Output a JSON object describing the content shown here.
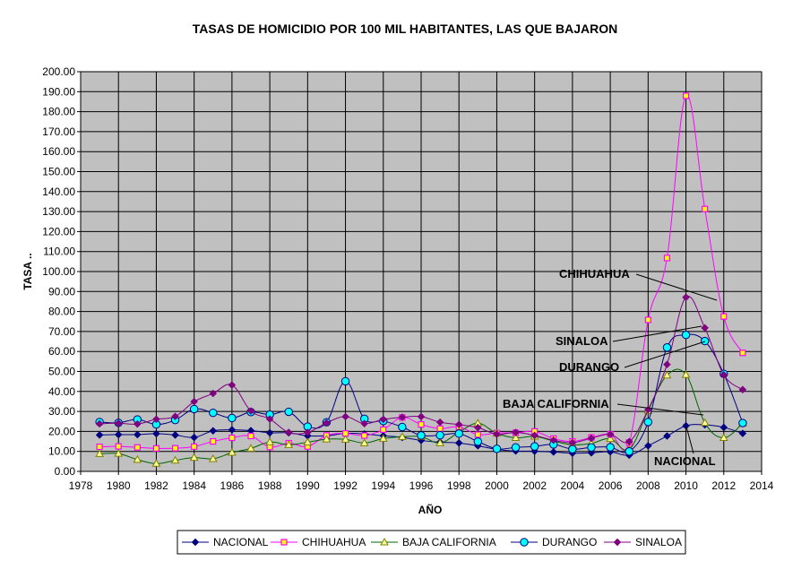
{
  "chart_data": {
    "type": "line",
    "title": "TASAS DE HOMICIDIO POR 100 MIL HABITANTES, LAS QUE BAJARON",
    "xlabel": "AÑO",
    "ylabel": "TASA  ..",
    "xlim": [
      1978,
      2014
    ],
    "ylim": [
      0,
      200
    ],
    "x_ticks": [
      "1978",
      "1980",
      "1982",
      "1984",
      "1986",
      "1988",
      "1990",
      "1992",
      "1994",
      "1996",
      "1998",
      "2000",
      "2002",
      "2004",
      "2006",
      "2008",
      "2010",
      "2012",
      "2014"
    ],
    "y_ticks": [
      "0.00",
      "10.00",
      "20.00",
      "30.00",
      "40.00",
      "50.00",
      "60.00",
      "70.00",
      "80.00",
      "90.00",
      "100.00",
      "110.00",
      "120.00",
      "130.00",
      "140.00",
      "150.00",
      "160.00",
      "170.00",
      "180.00",
      "190.00",
      "200.00"
    ],
    "grid": true,
    "plot_background": "#c0c0c0",
    "legend_position": "bottom",
    "x": [
      1979,
      1980,
      1981,
      1982,
      1983,
      1984,
      1985,
      1986,
      1987,
      1988,
      1989,
      1990,
      1991,
      1992,
      1993,
      1994,
      1995,
      1996,
      1997,
      1998,
      1999,
      2000,
      2001,
      2002,
      2003,
      2004,
      2005,
      2006,
      2007,
      2008,
      2009,
      2010,
      2011,
      2012,
      2013
    ],
    "series": [
      {
        "name": "NACIONAL",
        "color": "#000080",
        "marker": "diamond",
        "values": [
          18.2,
          18.4,
          18.4,
          18.9,
          18.2,
          17.0,
          20.3,
          20.8,
          20.4,
          19.3,
          19.3,
          17.8,
          17.8,
          19.0,
          18.7,
          17.8,
          17.0,
          15.5,
          14.6,
          14.2,
          12.8,
          11.0,
          10.2,
          10.1,
          9.7,
          9.1,
          9.3,
          9.8,
          8.1,
          12.8,
          17.7,
          22.8,
          23.3,
          22.0,
          19.0
        ]
      },
      {
        "name": "CHIHUAHUA",
        "color": "#ff00ff",
        "marker": "square",
        "values": [
          12.3,
          12.5,
          12.0,
          11.5,
          11.6,
          12.4,
          15.0,
          16.8,
          17.7,
          12.2,
          14.1,
          12.4,
          18.0,
          19.0,
          17.9,
          20.9,
          27.0,
          23.5,
          21.4,
          22.3,
          18.4,
          19.2,
          19.3,
          20.0,
          16.4,
          15.0,
          17.0,
          18.6,
          14.4,
          75.8,
          106.8,
          187.9,
          131.3,
          77.5,
          59.3
        ]
      },
      {
        "name": "BAJA CALIFORNIA",
        "color": "#808000",
        "marker": "triangle",
        "values": [
          8.8,
          8.9,
          5.9,
          3.9,
          5.5,
          6.9,
          6.3,
          9.4,
          11.5,
          14.7,
          13.3,
          14.6,
          16.1,
          16.0,
          14.2,
          16.4,
          17.3,
          17.4,
          14.2,
          19.6,
          24.1,
          19.0,
          16.8,
          17.5,
          15.2,
          13.3,
          14.0,
          16.3,
          11.0,
          30.4,
          48.1,
          48.4,
          24.3,
          16.8,
          24.1
        ]
      },
      {
        "name": "DURANGO",
        "color": "#00ffff",
        "marker": "circle",
        "values": [
          24.7,
          24.3,
          26.0,
          23.5,
          25.7,
          31.2,
          29.3,
          26.7,
          29.7,
          28.4,
          29.8,
          22.4,
          24.6,
          45.1,
          26.3,
          25.2,
          22.2,
          18.0,
          18.1,
          18.9,
          14.9,
          11.3,
          12.0,
          12.5,
          13.5,
          11.1,
          12.0,
          12.1,
          10.0,
          24.7,
          62.0,
          68.3,
          65.2,
          48.8,
          24.2
        ]
      },
      {
        "name": "SINALOA",
        "color": "#800080",
        "marker": "diamond",
        "values": [
          23.8,
          24.1,
          23.7,
          26.1,
          27.5,
          34.9,
          39.0,
          43.2,
          30.2,
          26.2,
          19.5,
          19.5,
          24.3,
          27.4,
          23.9,
          26.0,
          27.1,
          27.4,
          24.6,
          23.4,
          21.9,
          18.6,
          19.5,
          18.0,
          15.6,
          14.4,
          16.6,
          18.5,
          14.9,
          30.9,
          53.5,
          87.1,
          71.8,
          48.3,
          40.9
        ]
      }
    ],
    "annotations": [
      {
        "text": "CHIHUAHUA",
        "series": "CHIHUAHUA"
      },
      {
        "text": "SINALOA",
        "series": "SINALOA"
      },
      {
        "text": "DURANGO",
        "series": "DURANGO"
      },
      {
        "text": "BAJA CALIFORNIA",
        "series": "BAJA CALIFORNIA"
      },
      {
        "text": "NACIONAL",
        "series": "NACIONAL"
      }
    ]
  }
}
